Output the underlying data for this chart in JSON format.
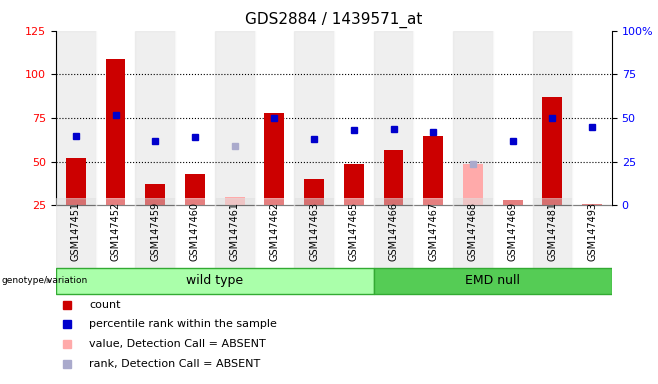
{
  "title": "GDS2884 / 1439571_at",
  "categories": [
    "GSM147451",
    "GSM147452",
    "GSM147459",
    "GSM147460",
    "GSM147461",
    "GSM147462",
    "GSM147463",
    "GSM147465",
    "GSM147466",
    "GSM147467",
    "GSM147468",
    "GSM147469",
    "GSM147481",
    "GSM147493"
  ],
  "count_values": [
    52,
    109,
    37,
    43,
    null,
    78,
    40,
    49,
    57,
    65,
    null,
    28,
    87,
    26
  ],
  "absent_value": [
    null,
    null,
    null,
    null,
    30,
    null,
    null,
    null,
    null,
    null,
    49,
    null,
    null,
    null
  ],
  "rank_values": [
    40,
    52,
    37,
    39,
    null,
    50,
    38,
    43,
    44,
    42,
    null,
    37,
    50,
    45
  ],
  "absent_rank": [
    null,
    null,
    null,
    null,
    34,
    null,
    null,
    null,
    null,
    null,
    24,
    null,
    null,
    null
  ],
  "wild_type_count": 8,
  "emd_null_count": 6,
  "left_ylim": [
    25,
    125
  ],
  "right_ylim": [
    0,
    100
  ],
  "left_yticks": [
    25,
    50,
    75,
    100,
    125
  ],
  "right_yticks": [
    0,
    25,
    50,
    75,
    100
  ],
  "right_yticklabels": [
    "0",
    "25",
    "50",
    "75",
    "100%"
  ],
  "bar_color": "#cc0000",
  "absent_bar_color": "#ffaaaa",
  "rank_color": "#0000cc",
  "absent_rank_color": "#aaaacc",
  "wt_bg": "#aaffaa",
  "emd_bg": "#55cc55",
  "col_bg_even": "#e0e0e0",
  "count_label": "count",
  "rank_label": "percentile rank within the sample",
  "absent_count_label": "value, Detection Call = ABSENT",
  "absent_rank_label": "rank, Detection Call = ABSENT"
}
